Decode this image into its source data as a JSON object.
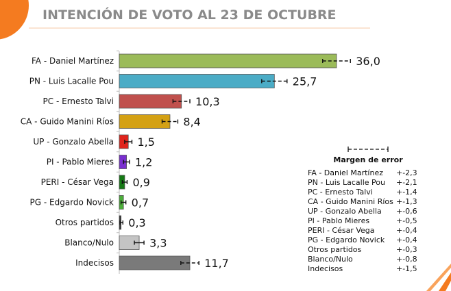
{
  "colors": {
    "accent": "#f47b20",
    "title": "#8a8a8a"
  },
  "chart_data": {
    "type": "bar",
    "orientation": "horizontal",
    "title": "INTENCIÓN DE VOTO AL 23 DE OCTUBRE",
    "categories": [
      "FA - Daniel Martínez",
      "PN - Luis Lacalle Pou",
      "PC - Ernesto Talvi",
      "CA - Guido Manini Ríos",
      "UP - Gonzalo Abella",
      "PI - Pablo Mieres",
      "PERI - César Vega",
      "PG - Edgardo Novick",
      "Otros partidos",
      "Blanco/Nulo",
      "Indecisos"
    ],
    "values": [
      36.0,
      25.7,
      10.3,
      8.4,
      1.5,
      1.2,
      0.9,
      0.7,
      0.3,
      3.3,
      11.7
    ],
    "value_labels": [
      "36,0",
      "25,7",
      "10,3",
      "8,4",
      "1,5",
      "1,2",
      "0,9",
      "0,7",
      "0,3",
      "3,3",
      "11,7"
    ],
    "errors": [
      2.3,
      2.1,
      1.4,
      1.3,
      0.6,
      0.5,
      0.4,
      0.4,
      0.3,
      0.8,
      1.5
    ],
    "error_labels": [
      "+-2,3",
      "+-2,1",
      "+-1,4",
      "+-1,3",
      "+-0,6",
      "+-0,5",
      "+-0,4",
      "+-0,4",
      "+-0,3",
      "+-0,8",
      "+-1,5"
    ],
    "bar_colors": [
      "#9bbb59",
      "#4bacc6",
      "#c0504d",
      "#d4a114",
      "#e0241c",
      "#7a2fd0",
      "#157a15",
      "#4caf3a",
      "#333333",
      "#c4c4c4",
      "#7a7a7a"
    ],
    "legend_title": "Margen de error",
    "legend_placement": "bottom-right",
    "xlim": [
      0,
      36
    ],
    "grid": false
  }
}
